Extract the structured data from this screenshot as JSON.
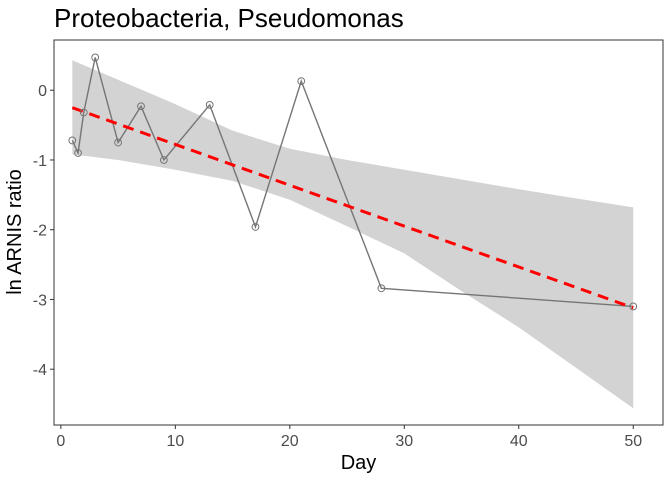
{
  "chart_data": {
    "type": "scatter",
    "title": "Proteobacteria, Pseudomonas",
    "xlabel": "Day",
    "ylabel": "ln ARNIS ratio",
    "xlim": [
      -0.6,
      52.6
    ],
    "ylim": [
      -4.8,
      0.72
    ],
    "x_ticks": [
      0,
      10,
      20,
      30,
      40,
      50
    ],
    "y_ticks": [
      0,
      -1,
      -2,
      -3,
      -4
    ],
    "grid": false,
    "legend": "none",
    "series": [
      {
        "points": [
          {
            "x": 1,
            "y": -0.72
          },
          {
            "x": 1.5,
            "y": -0.9
          },
          {
            "x": 2,
            "y": -0.32
          },
          {
            "x": 3,
            "y": 0.47
          },
          {
            "x": 5,
            "y": -0.75
          },
          {
            "x": 7,
            "y": -0.23
          },
          {
            "x": 9,
            "y": -1.0
          },
          {
            "x": 13,
            "y": -0.21
          },
          {
            "x": 17,
            "y": -1.96
          },
          {
            "x": 21,
            "y": 0.13
          },
          {
            "x": 28,
            "y": -2.84
          },
          {
            "x": 50,
            "y": -3.1
          }
        ],
        "color": "#757575"
      }
    ],
    "trend": {
      "x_start": 1,
      "y_start": -0.25,
      "x_end": 50,
      "y_end": -3.12,
      "color": "#ff0000"
    },
    "confidence_band": {
      "x": [
        1,
        5,
        10,
        15,
        20,
        25,
        30,
        35,
        40,
        45,
        50
      ],
      "upper": [
        0.43,
        0.15,
        -0.2,
        -0.58,
        -0.84,
        -1.0,
        -1.14,
        -1.28,
        -1.42,
        -1.55,
        -1.68
      ],
      "lower": [
        -0.92,
        -1.0,
        -1.14,
        -1.3,
        -1.57,
        -1.95,
        -2.34,
        -2.88,
        -3.4,
        -3.98,
        -4.56
      ],
      "color": "#d3d3d3"
    }
  }
}
